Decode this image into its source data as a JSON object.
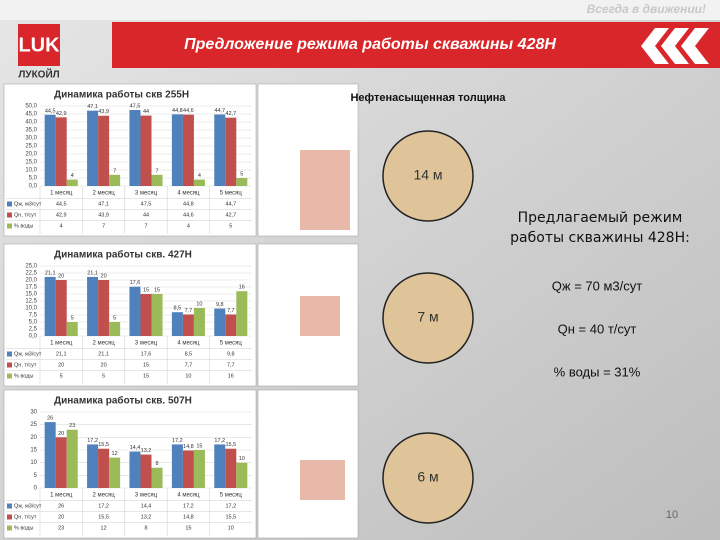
{
  "slide": {
    "tagline": "Всегда в движении!",
    "title": "Предложение режима работы скважины 428Н",
    "logo": "ЛУКОЙЛ",
    "thickness_label": "Нефтенасыщенная толщина",
    "thicknesses": [
      "14 м",
      "7 м",
      "6 м"
    ],
    "proposal": {
      "heading": "Предлагаемый режим работы скважины 428Н:",
      "q_liquid": "Qж = 70 м3/сут",
      "q_oil": "Qн = 40 т/сут",
      "water_cut": "% воды = 31%"
    },
    "page_number": 10
  },
  "chart_data": [
    {
      "type": "bar",
      "title": "Динамика работы скв 255Н",
      "categories": [
        "1 месяц",
        "2 месяц",
        "3 месяц",
        "4 месяц",
        "5 месяц"
      ],
      "series": [
        {
          "name": "Qж, м3/сут",
          "color": "#4f81bd",
          "values": [
            44.5,
            47.1,
            47.5,
            44.8,
            44.7
          ],
          "value_labels": [
            "44,5",
            "47,1",
            "47,5",
            "44,8",
            "44,7"
          ]
        },
        {
          "name": "Qн, т/сут",
          "color": "#c0504d",
          "values": [
            42.9,
            43.9,
            44,
            44.6,
            42.7
          ],
          "value_labels": [
            "42,9",
            "43,9",
            "44",
            "44,6",
            "42,7"
          ]
        },
        {
          "name": "% воды",
          "color": "#9bbb59",
          "values": [
            4,
            7,
            7,
            4,
            5
          ]
        }
      ],
      "ylim": [
        0,
        50
      ],
      "yticks": [
        {
          "value": 0,
          "label": "0,0"
        },
        {
          "value": 5,
          "label": "5,0"
        },
        {
          "value": 10,
          "label": "10,0"
        },
        {
          "value": 15,
          "label": "15,0"
        },
        {
          "value": 20,
          "label": "20,0"
        },
        {
          "value": 25,
          "label": "25,0"
        },
        {
          "value": 30,
          "label": "30,0"
        },
        {
          "value": 35,
          "label": "35,0"
        },
        {
          "value": 40,
          "label": "40,0"
        },
        {
          "value": 45,
          "label": "45,0"
        },
        {
          "value": 50,
          "label": "50,0"
        }
      ],
      "grid": true
    },
    {
      "type": "bar",
      "title": "Динамика работы скв. 427Н",
      "categories": [
        "1 месяц",
        "2 месяц",
        "3 месяц",
        "4 месяц",
        "5 месяц"
      ],
      "series": [
        {
          "name": "Qж, м3/сут",
          "color": "#4f81bd",
          "values": [
            21.1,
            21.1,
            17.6,
            8.5,
            9.8
          ],
          "value_labels": [
            "21,1",
            "21,1",
            "17,6",
            "8,5",
            "9,8"
          ]
        },
        {
          "name": "Qн, т/сут",
          "color": "#c0504d",
          "values": [
            20,
            20,
            15,
            7.7,
            7.7
          ],
          "value_labels": [
            "20",
            "20",
            "15",
            "7,7",
            "7,7"
          ]
        },
        {
          "name": "% воды",
          "color": "#9bbb59",
          "values": [
            5,
            5,
            15,
            10,
            16
          ]
        }
      ],
      "ylim": [
        0,
        25
      ],
      "yticks": [
        {
          "value": 0,
          "label": "0,0"
        },
        {
          "value": 2.5,
          "label": "2,5"
        },
        {
          "value": 5,
          "label": "5,0"
        },
        {
          "value": 7.5,
          "label": "7,5"
        },
        {
          "value": 10,
          "label": "10,0"
        },
        {
          "value": 12.5,
          "label": "12,5"
        },
        {
          "value": 15,
          "label": "15,0"
        },
        {
          "value": 17.5,
          "label": "17,5"
        },
        {
          "value": 20,
          "label": "20,0"
        },
        {
          "value": 22.5,
          "label": "22,5"
        },
        {
          "value": 25,
          "label": "25,0"
        }
      ],
      "grid": true
    },
    {
      "type": "bar",
      "title": "Динамика работы скв. 507Н",
      "categories": [
        "1 месяц",
        "2 месяц",
        "3 месяц",
        "4 месяц",
        "5 месяц"
      ],
      "series": [
        {
          "name": "Qж, м3/сут",
          "color": "#4f81bd",
          "values": [
            26,
            17.2,
            14.4,
            17.2,
            17.2
          ],
          "value_labels": [
            "26",
            "17,2",
            "14,4",
            "17,2",
            "17,2"
          ]
        },
        {
          "name": "Qн, т/сут",
          "color": "#c0504d",
          "values": [
            20,
            15.5,
            13.2,
            14.8,
            15.5
          ],
          "value_labels": [
            "20",
            "15,5",
            "13,2",
            "14,8",
            "15,5"
          ]
        },
        {
          "name": "% воды",
          "color": "#9bbb59",
          "values": [
            23,
            12,
            8,
            15,
            10
          ]
        }
      ],
      "ylim": [
        0,
        30
      ],
      "yticks": [
        0,
        5,
        10,
        15,
        20,
        25,
        30
      ],
      "grid": true
    }
  ]
}
